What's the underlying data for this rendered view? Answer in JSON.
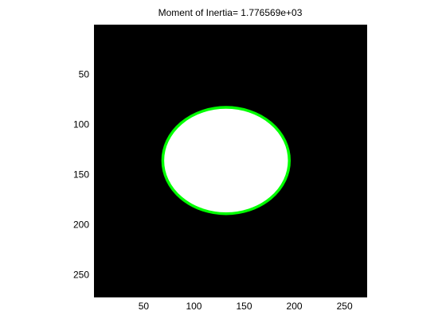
{
  "chart_data": {
    "type": "image",
    "title": "Moment of Inertia= 1.776569e+03",
    "xlim": [
      0.5,
      272.5
    ],
    "ylim": [
      0.5,
      272.5
    ],
    "y_direction": "reversed",
    "xticks": [
      50,
      100,
      150,
      200,
      250
    ],
    "yticks": [
      50,
      100,
      150,
      200,
      250
    ],
    "background_color": "#000000",
    "region": {
      "shape": "ellipse",
      "fill_color": "#ffffff",
      "center": [
        132,
        136
      ],
      "semi_axis_x": 63,
      "semi_axis_y": 53
    },
    "boundary": {
      "shape": "ellipse",
      "color": "#00ff00",
      "center": [
        132,
        136
      ],
      "semi_axis_x": 63,
      "semi_axis_y": 53
    }
  }
}
